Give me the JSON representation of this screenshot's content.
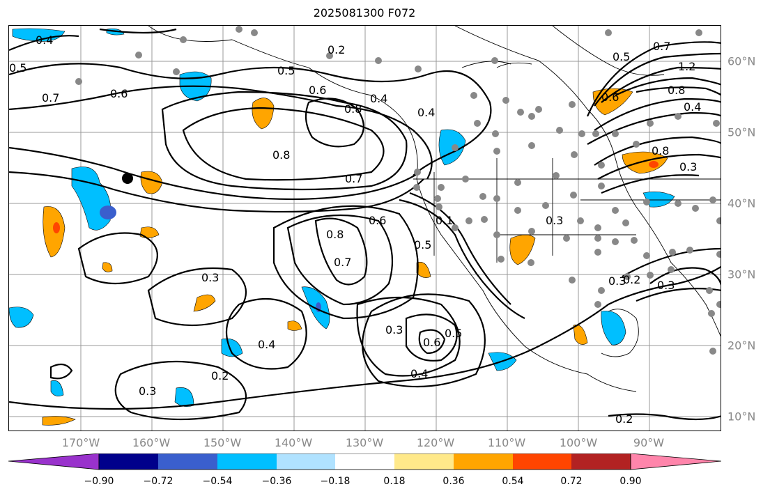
{
  "title": "2025081300 F072",
  "map": {
    "lon_labels": [
      "170°W",
      "160°W",
      "150°W",
      "140°W",
      "130°W",
      "120°W",
      "110°W",
      "100°W",
      "90°W"
    ],
    "lat_labels": [
      "60°N",
      "50°N",
      "40°N",
      "30°N",
      "20°N",
      "10°N"
    ],
    "contour_labels": [
      "0.4",
      "0.5",
      "0.7",
      "0.6",
      "0.2",
      "0.5",
      "0.6",
      "0.4",
      "0.8",
      "0.4",
      "0.8",
      "0.7",
      "0.8",
      "0.7",
      "0.6",
      "0.5",
      "0.3",
      "0.3",
      "0.4",
      "0.3",
      "0.2",
      "0.3",
      "0.6",
      "0.5",
      "0.4",
      "0.5",
      "0.7",
      "1.2",
      "0.8",
      "0.4",
      "0.3",
      "0.2",
      "0.3",
      "0.2",
      "0.6",
      "0.1",
      "0.8",
      "0.3"
    ],
    "marker": "station-dot"
  },
  "colorbar": {
    "ticks": [
      "−0.90",
      "−0.72",
      "−0.54",
      "−0.36",
      "−0.18",
      "0.18",
      "0.36",
      "0.54",
      "0.72",
      "0.90"
    ],
    "colors": [
      "#9932cc",
      "#00008b",
      "#3a5fcd",
      "#00bfff",
      "#b0e2ff",
      "#ffffff",
      "#ffe98a",
      "#ffa500",
      "#ff4500",
      "#b22222",
      "#ff85ab",
      "#ff85ab"
    ]
  }
}
